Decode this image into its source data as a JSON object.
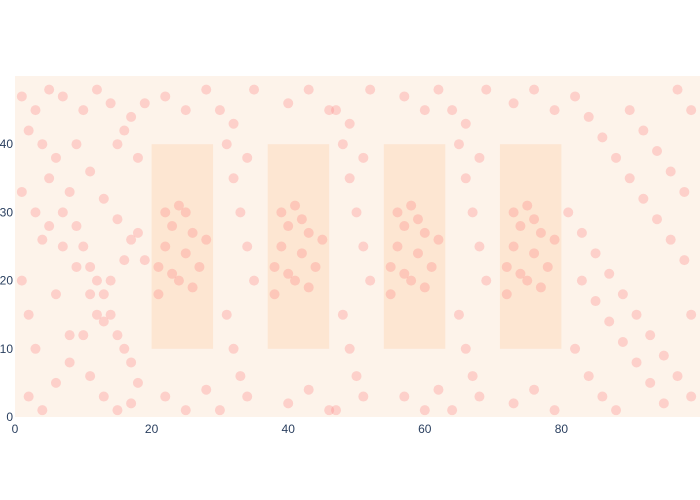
{
  "chart_data": {
    "type": "scatter",
    "title": "",
    "xlabel": "",
    "ylabel": "",
    "xlim": [
      0,
      100
    ],
    "ylim": [
      0,
      50
    ],
    "x_ticks": [
      0,
      20,
      40,
      60,
      80
    ],
    "y_ticks": [
      0,
      10,
      20,
      30,
      40
    ],
    "x_tick_labels": [
      "0",
      "20",
      "40",
      "60",
      "80"
    ],
    "y_tick_labels": [
      "0",
      "10",
      "20",
      "30",
      "40"
    ],
    "grid": false,
    "legend": "none",
    "colors": {
      "plot_background": "#fdf3ea",
      "rect_fill": "#fde6d2",
      "marker": "#ff8080"
    },
    "background_rects": [
      {
        "x0": 20,
        "x1": 29,
        "y0": 10,
        "y1": 40
      },
      {
        "x0": 37,
        "x1": 46,
        "y0": 10,
        "y1": 40
      },
      {
        "x0": 54,
        "x1": 63,
        "y0": 10,
        "y1": 40
      },
      {
        "x0": 71,
        "x1": 80,
        "y0": 10,
        "y1": 40
      }
    ],
    "series": [
      {
        "points": [
          [
            1,
            47
          ],
          [
            3,
            45
          ],
          [
            2,
            42
          ],
          [
            4,
            40
          ],
          [
            6,
            38
          ],
          [
            5,
            35
          ],
          [
            8,
            33
          ],
          [
            7,
            30
          ],
          [
            9,
            28
          ],
          [
            10,
            25
          ],
          [
            11,
            22
          ],
          [
            12,
            20
          ],
          [
            13,
            18
          ],
          [
            14,
            15
          ],
          [
            15,
            12
          ],
          [
            16,
            10
          ],
          [
            17,
            8
          ],
          [
            18,
            5
          ],
          [
            2,
            3
          ],
          [
            4,
            1
          ],
          [
            6,
            5
          ],
          [
            8,
            8
          ],
          [
            10,
            12
          ],
          [
            12,
            15
          ],
          [
            14,
            20
          ],
          [
            16,
            23
          ],
          [
            18,
            27
          ],
          [
            3,
            30
          ],
          [
            5,
            28
          ],
          [
            7,
            25
          ],
          [
            9,
            22
          ],
          [
            11,
            18
          ],
          [
            13,
            14
          ],
          [
            15,
            40
          ],
          [
            17,
            44
          ],
          [
            1,
            20
          ],
          [
            2,
            15
          ],
          [
            3,
            10
          ],
          [
            5,
            48
          ],
          [
            7,
            47
          ],
          [
            10,
            45
          ],
          [
            12,
            48
          ],
          [
            14,
            46
          ],
          [
            16,
            42
          ],
          [
            18,
            38
          ],
          [
            1,
            33
          ],
          [
            4,
            26
          ],
          [
            6,
            18
          ],
          [
            8,
            12
          ],
          [
            11,
            6
          ],
          [
            13,
            3
          ],
          [
            15,
            1
          ],
          [
            17,
            2
          ],
          [
            9,
            40
          ],
          [
            11,
            36
          ],
          [
            13,
            32
          ],
          [
            15,
            29
          ],
          [
            17,
            26
          ],
          [
            19,
            23
          ],
          [
            19,
            46
          ],
          [
            21,
            22
          ],
          [
            22,
            25
          ],
          [
            23,
            28
          ],
          [
            24,
            20
          ],
          [
            25,
            24
          ],
          [
            26,
            27
          ],
          [
            27,
            22
          ],
          [
            22,
            30
          ],
          [
            24,
            31
          ],
          [
            26,
            19
          ],
          [
            21,
            18
          ],
          [
            28,
            26
          ],
          [
            23,
            21
          ],
          [
            25,
            30
          ],
          [
            38,
            22
          ],
          [
            39,
            25
          ],
          [
            40,
            28
          ],
          [
            41,
            20
          ],
          [
            42,
            24
          ],
          [
            43,
            27
          ],
          [
            44,
            22
          ],
          [
            39,
            30
          ],
          [
            41,
            31
          ],
          [
            43,
            19
          ],
          [
            38,
            18
          ],
          [
            45,
            26
          ],
          [
            40,
            21
          ],
          [
            42,
            29
          ],
          [
            55,
            22
          ],
          [
            56,
            25
          ],
          [
            57,
            28
          ],
          [
            58,
            20
          ],
          [
            59,
            24
          ],
          [
            60,
            27
          ],
          [
            61,
            22
          ],
          [
            56,
            30
          ],
          [
            58,
            31
          ],
          [
            60,
            19
          ],
          [
            55,
            18
          ],
          [
            62,
            26
          ],
          [
            57,
            21
          ],
          [
            59,
            29
          ],
          [
            72,
            22
          ],
          [
            73,
            25
          ],
          [
            74,
            28
          ],
          [
            75,
            20
          ],
          [
            76,
            24
          ],
          [
            77,
            27
          ],
          [
            78,
            22
          ],
          [
            73,
            30
          ],
          [
            75,
            31
          ],
          [
            77,
            19
          ],
          [
            72,
            18
          ],
          [
            79,
            26
          ],
          [
            74,
            21
          ],
          [
            76,
            29
          ],
          [
            30,
            45
          ],
          [
            31,
            40
          ],
          [
            32,
            35
          ],
          [
            33,
            30
          ],
          [
            34,
            25
          ],
          [
            35,
            20
          ],
          [
            31,
            15
          ],
          [
            32,
            10
          ],
          [
            33,
            6
          ],
          [
            34,
            3
          ],
          [
            30,
            1
          ],
          [
            35,
            48
          ],
          [
            32,
            43
          ],
          [
            34,
            38
          ],
          [
            47,
            45
          ],
          [
            48,
            40
          ],
          [
            49,
            35
          ],
          [
            50,
            30
          ],
          [
            51,
            25
          ],
          [
            52,
            20
          ],
          [
            48,
            15
          ],
          [
            49,
            10
          ],
          [
            50,
            6
          ],
          [
            51,
            3
          ],
          [
            47,
            1
          ],
          [
            52,
            48
          ],
          [
            49,
            43
          ],
          [
            51,
            38
          ],
          [
            64,
            45
          ],
          [
            65,
            40
          ],
          [
            66,
            35
          ],
          [
            67,
            30
          ],
          [
            68,
            25
          ],
          [
            69,
            20
          ],
          [
            65,
            15
          ],
          [
            66,
            10
          ],
          [
            67,
            6
          ],
          [
            68,
            3
          ],
          [
            64,
            1
          ],
          [
            69,
            48
          ],
          [
            66,
            43
          ],
          [
            68,
            38
          ],
          [
            22,
            47
          ],
          [
            25,
            45
          ],
          [
            28,
            48
          ],
          [
            40,
            46
          ],
          [
            43,
            48
          ],
          [
            46,
            45
          ],
          [
            57,
            47
          ],
          [
            60,
            45
          ],
          [
            62,
            48
          ],
          [
            73,
            46
          ],
          [
            76,
            48
          ],
          [
            79,
            45
          ],
          [
            22,
            3
          ],
          [
            25,
            1
          ],
          [
            28,
            4
          ],
          [
            40,
            2
          ],
          [
            43,
            4
          ],
          [
            46,
            1
          ],
          [
            57,
            3
          ],
          [
            60,
            1
          ],
          [
            62,
            4
          ],
          [
            73,
            2
          ],
          [
            76,
            4
          ],
          [
            79,
            1
          ],
          [
            82,
            47
          ],
          [
            84,
            44
          ],
          [
            86,
            41
          ],
          [
            88,
            38
          ],
          [
            90,
            35
          ],
          [
            92,
            32
          ],
          [
            94,
            29
          ],
          [
            96,
            26
          ],
          [
            98,
            23
          ],
          [
            83,
            20
          ],
          [
            85,
            17
          ],
          [
            87,
            14
          ],
          [
            89,
            11
          ],
          [
            91,
            8
          ],
          [
            93,
            5
          ],
          [
            95,
            2
          ],
          [
            97,
            48
          ],
          [
            99,
            45
          ],
          [
            81,
            30
          ],
          [
            83,
            27
          ],
          [
            85,
            24
          ],
          [
            87,
            21
          ],
          [
            89,
            18
          ],
          [
            91,
            15
          ],
          [
            93,
            12
          ],
          [
            95,
            9
          ],
          [
            97,
            6
          ],
          [
            99,
            3
          ],
          [
            82,
            10
          ],
          [
            84,
            6
          ],
          [
            86,
            3
          ],
          [
            88,
            1
          ],
          [
            90,
            45
          ],
          [
            92,
            42
          ],
          [
            94,
            39
          ],
          [
            96,
            36
          ],
          [
            98,
            33
          ],
          [
            99,
            15
          ]
        ]
      }
    ]
  }
}
